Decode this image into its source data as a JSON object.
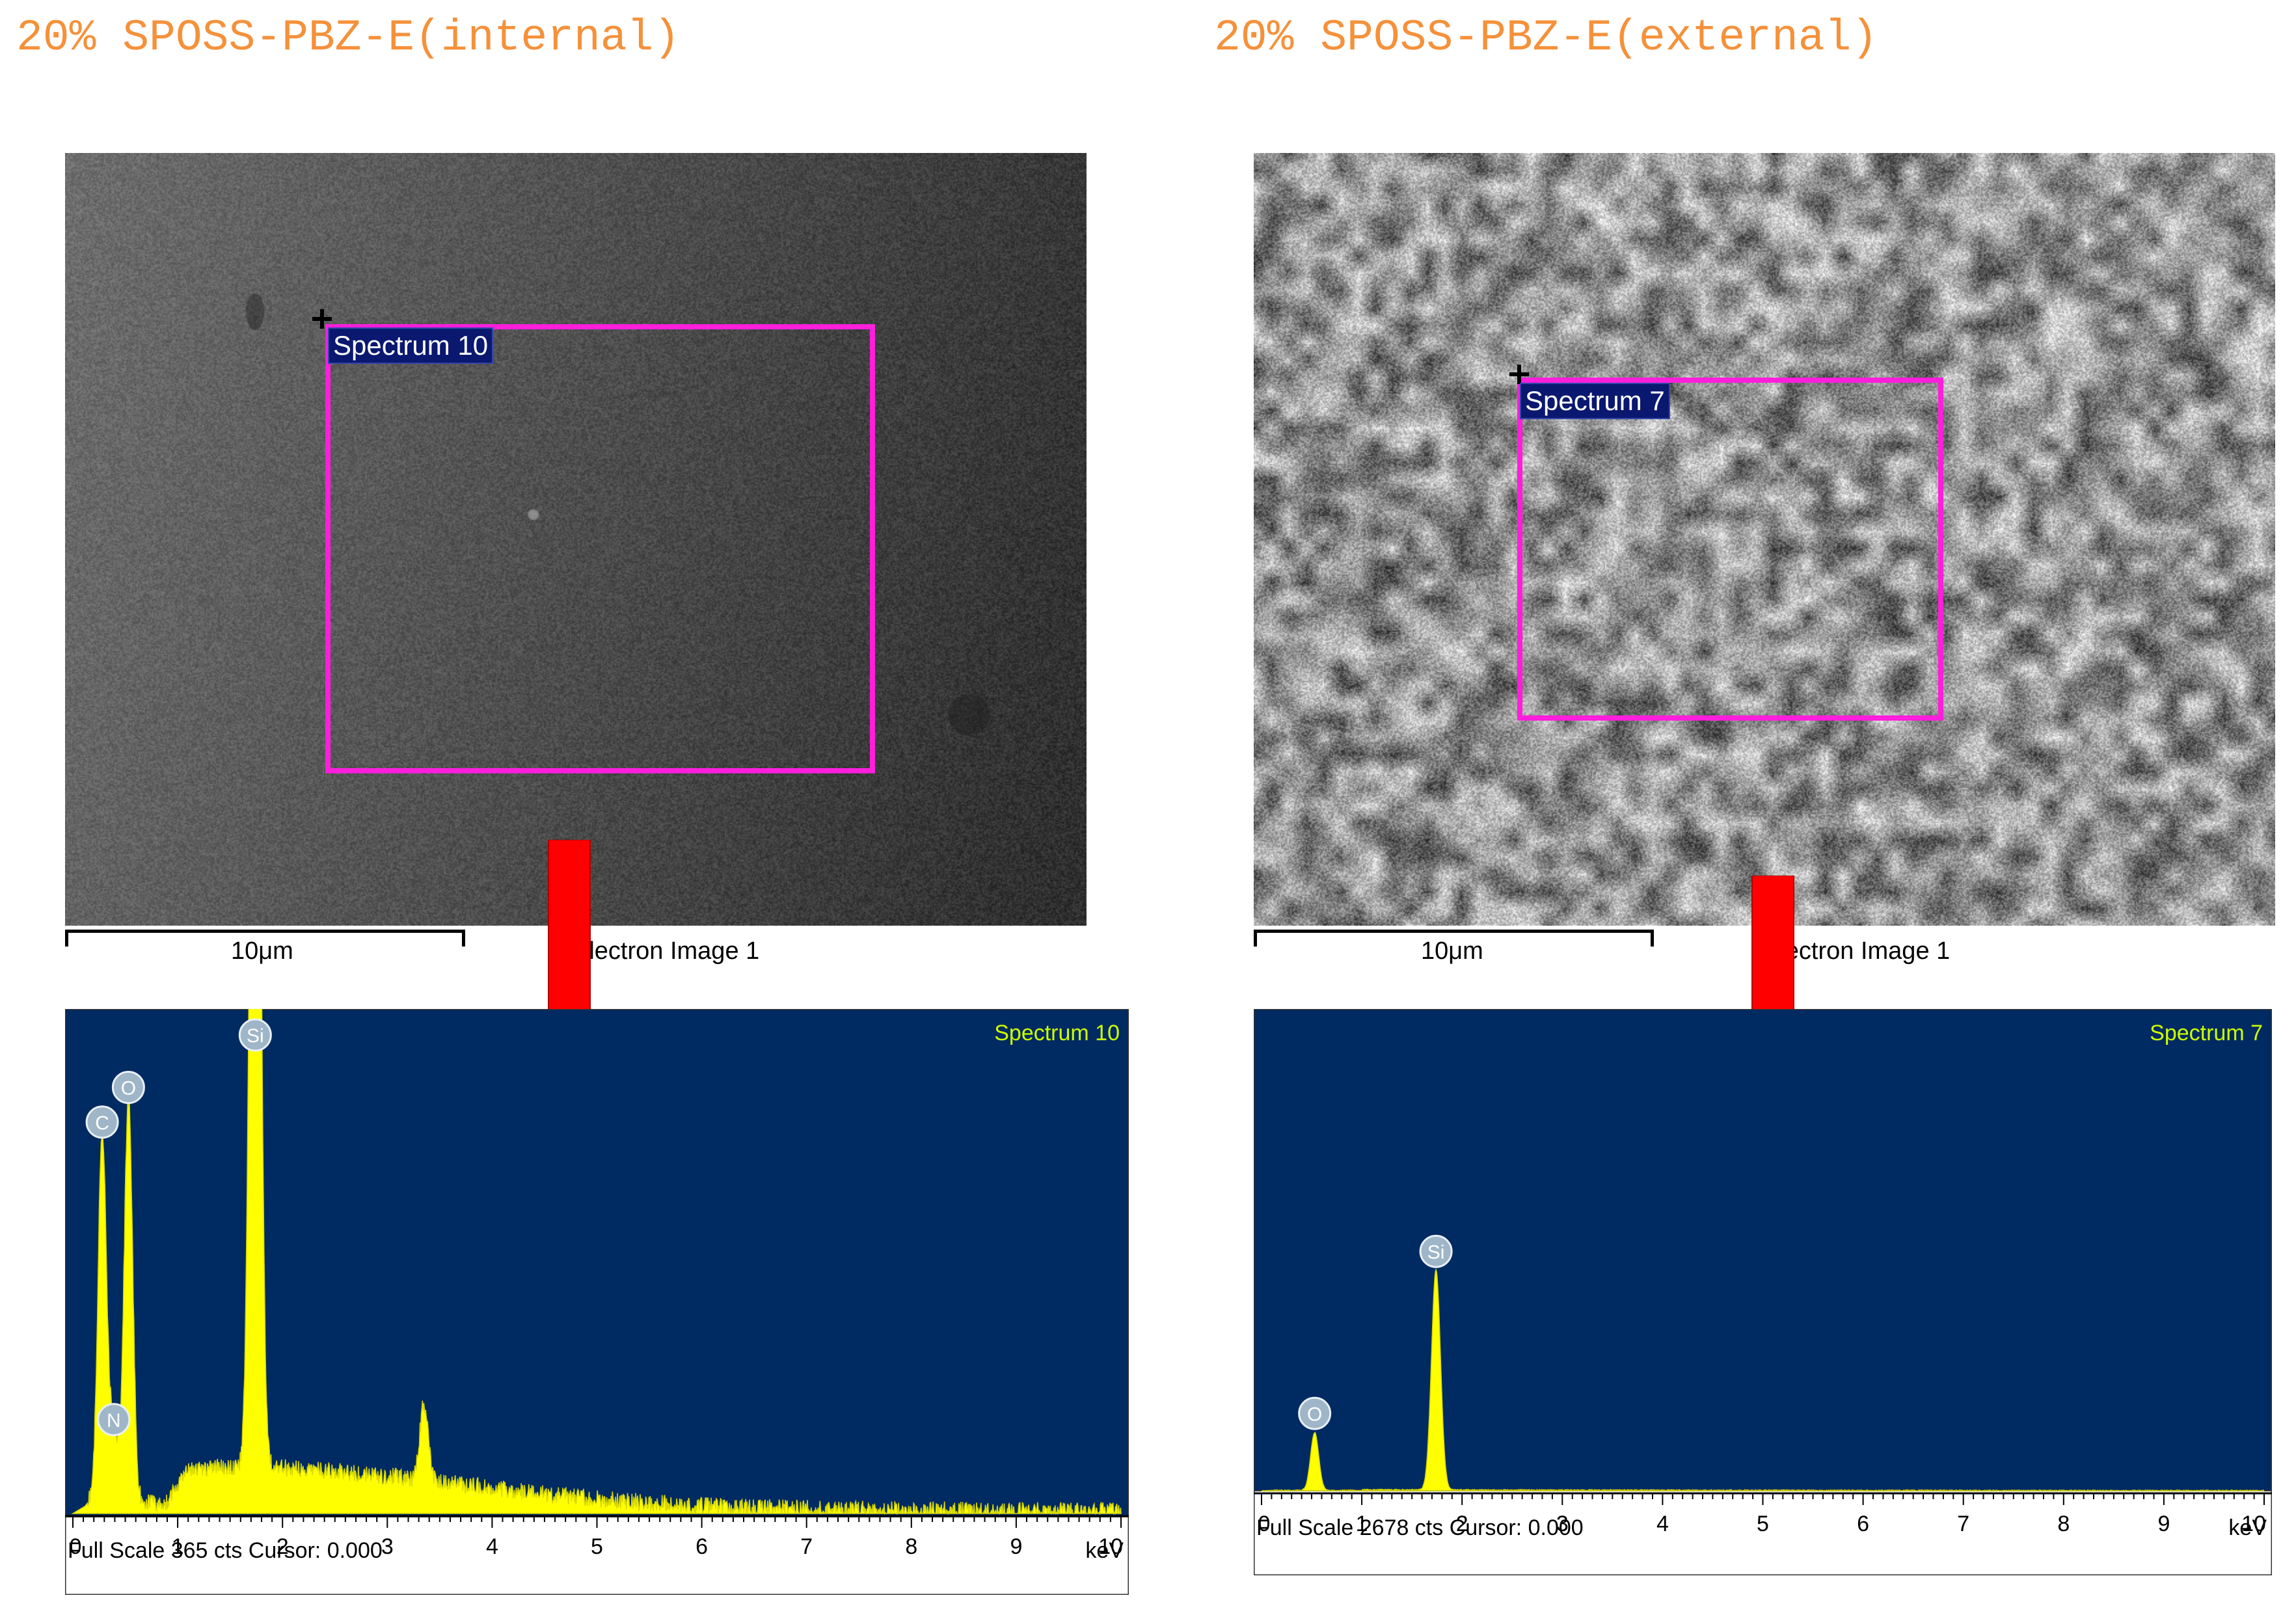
{
  "panels": [
    {
      "title": "20% SPOSS-PBZ-E(internal)",
      "sem": {
        "image_label": "Electron Image 1",
        "scale_label": "10μm",
        "region_tag": "Spectrum 10",
        "texture": "smooth",
        "region_color": "#ff1edc"
      },
      "chart_data": {
        "type": "line",
        "title": "Spectrum 10",
        "xlabel": "keV",
        "ylabel": "",
        "xlim": [
          0,
          10
        ],
        "x_ticks": [
          0,
          1,
          2,
          3,
          4,
          5,
          6,
          7,
          8,
          9,
          10
        ],
        "full_scale_cts": 365,
        "footer": "Full Scale 365 cts Cursor: 0.000",
        "peaks": [
          {
            "element": "C",
            "kev": 0.28,
            "cts": 300
          },
          {
            "element": "N",
            "kev": 0.39,
            "cts": 60
          },
          {
            "element": "O",
            "kev": 0.53,
            "cts": 328
          },
          {
            "element": "Si",
            "kev": 1.74,
            "cts": 975
          },
          {
            "element": "",
            "kev": 3.35,
            "cts": 62
          }
        ],
        "background": {
          "level_cts": 30,
          "decay": "slow"
        },
        "colors": {
          "background": "#002a62",
          "spectrum": "#ffff00",
          "label": "#ccff00"
        }
      }
    },
    {
      "title": "20% SPOSS-PBZ-E(external)",
      "sem": {
        "image_label": "Electron Image 1",
        "scale_label": "10μm",
        "region_tag": "Spectrum 7",
        "texture": "rough",
        "region_color": "#ff1edc"
      },
      "chart_data": {
        "type": "line",
        "title": "Spectrum 7",
        "xlabel": "keV",
        "ylabel": "",
        "xlim": [
          0,
          10
        ],
        "x_ticks": [
          0,
          1,
          2,
          3,
          4,
          5,
          6,
          7,
          8,
          9,
          10
        ],
        "full_scale_cts": 2678,
        "footer": "Full Scale 2678 cts Cursor: 0.000",
        "peaks": [
          {
            "element": "O",
            "kev": 0.53,
            "cts": 360
          },
          {
            "element": "Si",
            "kev": 1.74,
            "cts": 1370
          }
        ],
        "background": {
          "level_cts": 8,
          "decay": "fast"
        },
        "colors": {
          "background": "#002a62",
          "spectrum": "#ffff00",
          "label": "#ccff00"
        }
      }
    }
  ],
  "arrow_color": "#ff0000"
}
